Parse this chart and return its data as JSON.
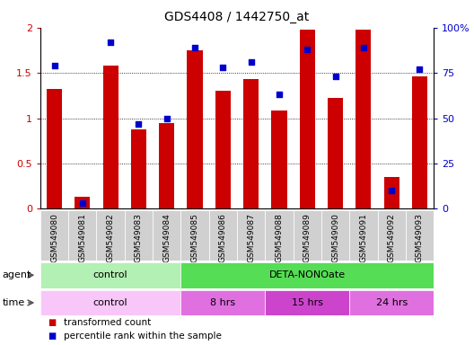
{
  "title": "GDS4408 / 1442750_at",
  "samples": [
    "GSM549080",
    "GSM549081",
    "GSM549082",
    "GSM549083",
    "GSM549084",
    "GSM549085",
    "GSM549086",
    "GSM549087",
    "GSM549088",
    "GSM549089",
    "GSM549090",
    "GSM549091",
    "GSM549092",
    "GSM549093"
  ],
  "bar_values": [
    1.32,
    0.13,
    1.58,
    0.88,
    0.95,
    1.75,
    1.3,
    1.43,
    1.08,
    1.98,
    1.22,
    1.98,
    0.35,
    1.46
  ],
  "dot_pct": [
    79,
    3,
    92,
    47,
    50,
    89,
    78,
    81,
    63,
    88,
    73,
    89,
    10,
    77
  ],
  "bar_color": "#cc0000",
  "dot_color": "#0000cc",
  "ylim_left": [
    0,
    2
  ],
  "ylim_right": [
    0,
    100
  ],
  "yticks_left": [
    0,
    0.5,
    1.0,
    1.5,
    2.0
  ],
  "ytick_labels_left": [
    "0",
    "0.5",
    "1",
    "1.5",
    "2"
  ],
  "yticks_right": [
    0,
    25,
    50,
    75,
    100
  ],
  "ytick_labels_right": [
    "0",
    "25",
    "50",
    "75",
    "100%"
  ],
  "agent_groups": [
    {
      "label": "control",
      "start": 0,
      "end": 5,
      "color": "#b3f0b3"
    },
    {
      "label": "DETA-NONOate",
      "start": 5,
      "end": 14,
      "color": "#55dd55"
    }
  ],
  "time_groups": [
    {
      "label": "control",
      "start": 0,
      "end": 5,
      "color": "#f9c6f9"
    },
    {
      "label": "8 hrs",
      "start": 5,
      "end": 8,
      "color": "#e070e0"
    },
    {
      "label": "15 hrs",
      "start": 8,
      "end": 11,
      "color": "#cc44cc"
    },
    {
      "label": "24 hrs",
      "start": 11,
      "end": 14,
      "color": "#e070e0"
    }
  ],
  "legend_items": [
    {
      "label": "transformed count",
      "color": "#cc0000"
    },
    {
      "label": "percentile rank within the sample",
      "color": "#0000cc"
    }
  ],
  "bar_width": 0.55
}
